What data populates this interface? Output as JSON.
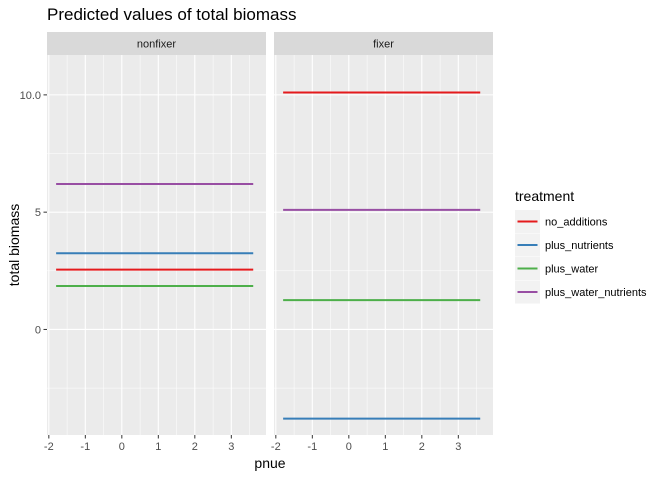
{
  "chart_data": {
    "type": "line",
    "title": "Predicted values of total biomass",
    "xlabel": "pnue",
    "ylabel": "total biomass",
    "xlim": [
      -2.05,
      3.95
    ],
    "ylim": [
      -4.5,
      11.7
    ],
    "x_ticks": [
      -2,
      -1,
      0,
      1,
      2,
      3
    ],
    "y_ticks": [
      0,
      5,
      10
    ],
    "x_range": [
      -1.8,
      3.6
    ],
    "grid": true,
    "legend": {
      "title": "treatment",
      "position": "right",
      "entries": [
        "no_additions",
        "plus_nutrients",
        "plus_water",
        "plus_water_nutrients"
      ]
    },
    "colors": {
      "no_additions": "#e41a1c",
      "plus_nutrients": "#377eb8",
      "plus_water": "#4daf4a",
      "plus_water_nutrients": "#984ea3"
    },
    "panels": [
      {
        "label": "nonfixer",
        "series": [
          {
            "name": "no_additions",
            "x": [
              -1.8,
              3.6
            ],
            "y": [
              2.55,
              2.55
            ]
          },
          {
            "name": "plus_nutrients",
            "x": [
              -1.8,
              3.6
            ],
            "y": [
              3.25,
              3.25
            ]
          },
          {
            "name": "plus_water",
            "x": [
              -1.8,
              3.6
            ],
            "y": [
              1.85,
              1.85
            ]
          },
          {
            "name": "plus_water_nutrients",
            "x": [
              -1.8,
              3.6
            ],
            "y": [
              6.2,
              6.2
            ]
          }
        ]
      },
      {
        "label": "fixer",
        "series": [
          {
            "name": "no_additions",
            "x": [
              -1.8,
              3.6
            ],
            "y": [
              10.1,
              10.1
            ]
          },
          {
            "name": "plus_nutrients",
            "x": [
              -1.8,
              3.6
            ],
            "y": [
              -3.8,
              -3.8
            ]
          },
          {
            "name": "plus_water",
            "x": [
              -1.8,
              3.6
            ],
            "y": [
              1.25,
              1.25
            ]
          },
          {
            "name": "plus_water_nutrients",
            "x": [
              -1.8,
              3.6
            ],
            "y": [
              5.1,
              5.1
            ]
          }
        ]
      }
    ]
  }
}
